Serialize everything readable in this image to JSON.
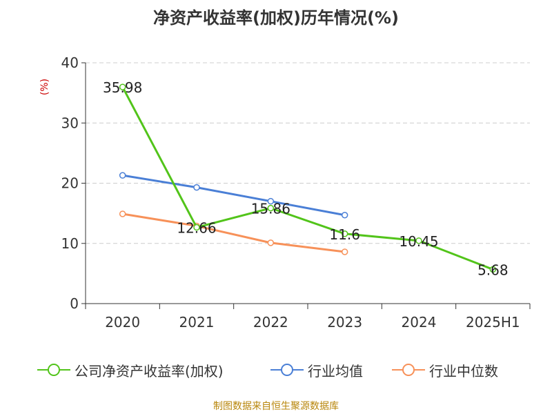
{
  "chart_data": {
    "type": "line",
    "title": "净资产收益率(加权)历年情况(%)",
    "ylabel": "(%)",
    "xlabel": "",
    "categories": [
      "2020",
      "2021",
      "2022",
      "2023",
      "2024",
      "2025H1"
    ],
    "ylim": [
      0,
      40
    ],
    "yticks": [
      0,
      10,
      20,
      30,
      40
    ],
    "grid": "horizontal dashed",
    "legend_position": "bottom",
    "series": [
      {
        "name": "公司净资产收益率(加权)",
        "color": "#52c41a",
        "values": [
          35.98,
          12.66,
          15.86,
          11.6,
          10.45,
          5.68
        ],
        "labels": [
          "35.98",
          "12.66",
          "15.86",
          "11.6",
          "10.45",
          "5.68"
        ]
      },
      {
        "name": "行业均值",
        "color": "#4a7fd6",
        "values": [
          21.3,
          19.3,
          17.0,
          14.7,
          null,
          null
        ]
      },
      {
        "name": "行业中位数",
        "color": "#f79159",
        "values": [
          14.9,
          12.9,
          10.1,
          8.6,
          null,
          null
        ]
      }
    ]
  },
  "footer": {
    "source": "制图数据来自恒生聚源数据库"
  }
}
